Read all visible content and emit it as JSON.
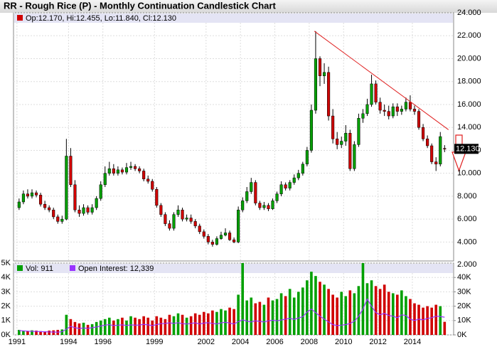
{
  "chart_data": {
    "type": "candlestick",
    "title": "RR - Rough Rice (P) - Monthly Continuation Candlestick Chart",
    "price_legend": "Op:12.170, Hi:12.455, Lo:11.840, Cl:12.130",
    "volume_legend": "Vol: 911",
    "oi_legend": "Open Interest: 12,339",
    "corner_label": "2.000",
    "up_color": "#00a000",
    "down_color": "#d00000",
    "oi_color": "#9933ff",
    "trend_color": "#e02020",
    "grid": true,
    "last_price": 12.13,
    "last_price_label": "12.130",
    "xlim": [
      1990.8,
      2016.4
    ],
    "xticks": [
      {
        "value": 1991,
        "label": "1991"
      },
      {
        "value": 1994,
        "label": "1994"
      },
      {
        "value": 1996,
        "label": "1996"
      },
      {
        "value": 1999,
        "label": "1999"
      },
      {
        "value": 2002,
        "label": "2002"
      },
      {
        "value": 2004,
        "label": "2004"
      },
      {
        "value": 2006,
        "label": "2006"
      },
      {
        "value": 2008,
        "label": "2008"
      },
      {
        "value": 2010,
        "label": "2010"
      },
      {
        "value": 2012,
        "label": "2012"
      },
      {
        "value": 2014,
        "label": "2014"
      }
    ],
    "ylim": [
      2.35,
      24
    ],
    "yticks": [
      {
        "value": 4,
        "label": "4.000"
      },
      {
        "value": 6,
        "label": "6.000"
      },
      {
        "value": 8,
        "label": "8.000"
      },
      {
        "value": 10,
        "label": "10.000"
      },
      {
        "value": 12,
        "label": "12.000"
      },
      {
        "value": 14,
        "label": "14.000"
      },
      {
        "value": 16,
        "label": "16.000"
      },
      {
        "value": 18,
        "label": "18.000"
      },
      {
        "value": 20,
        "label": "20.000"
      },
      {
        "value": 22,
        "label": "22.000"
      },
      {
        "value": 24,
        "label": "24.000"
      }
    ],
    "vol_lim": [
      0,
      5000
    ],
    "vol_ticks": [
      {
        "value": 0,
        "label": "0K"
      },
      {
        "value": 1000,
        "label": "1K"
      },
      {
        "value": 2000,
        "label": "2K"
      },
      {
        "value": 3000,
        "label": "3K"
      },
      {
        "value": 4000,
        "label": "4K"
      },
      {
        "value": 5000,
        "label": "5K"
      }
    ],
    "y2lim": [
      0,
      50000
    ],
    "y2ticks": [
      {
        "value": 0,
        "label": "0K"
      },
      {
        "value": 10000,
        "label": "10K"
      },
      {
        "value": 20000,
        "label": "20K"
      },
      {
        "value": 30000,
        "label": "30K"
      },
      {
        "value": 40000,
        "label": "40K"
      }
    ],
    "trendline": {
      "x": [
        2008.3,
        2016.1
      ],
      "y": [
        22.4,
        13.8
      ]
    },
    "open": [
      7.0,
      7.5,
      8.2,
      8.0,
      8.3,
      8.1,
      7.3,
      7.0,
      6.8,
      6.2,
      5.8,
      6.0,
      11.5,
      9.0,
      6.8,
      6.5,
      7.0,
      6.6,
      7.0,
      7.8,
      9.0,
      10.0,
      10.4,
      10.0,
      10.3,
      10.1,
      10.5,
      10.6,
      10.4,
      10.2,
      9.5,
      9.3,
      8.6,
      7.2,
      6.4,
      5.6,
      5.2,
      6.4,
      6.8,
      6.0,
      6.1,
      5.8,
      5.4,
      4.9,
      4.5,
      4.0,
      3.8,
      4.3,
      4.6,
      4.8,
      4.2,
      4.0,
      6.8,
      7.6,
      8.4,
      9.2,
      7.4,
      7.0,
      7.2,
      6.9,
      7.6,
      8.2,
      9.0,
      8.7,
      9.2,
      9.6,
      10.0,
      10.8,
      12.0,
      15.5,
      20.0,
      18.5,
      18.8,
      15.0,
      13.0,
      12.5,
      12.8,
      13.5,
      10.4,
      12.5,
      14.8,
      15.2,
      16.0,
      17.8,
      16.2,
      15.5,
      15.4,
      15.0,
      15.8,
      15.4,
      15.6,
      16.2,
      15.6,
      15.4,
      14.0,
      13.0,
      12.4,
      11.0,
      10.8,
      12.17
    ],
    "high": [
      7.8,
      8.5,
      8.6,
      8.6,
      8.5,
      8.3,
      7.6,
      7.2,
      7.0,
      6.4,
      6.3,
      13.0,
      12.2,
      9.4,
      7.2,
      7.3,
      7.2,
      7.3,
      8.0,
      9.3,
      10.6,
      11.0,
      10.8,
      10.6,
      10.5,
      10.9,
      11.0,
      10.8,
      10.6,
      10.4,
      9.8,
      9.5,
      8.8,
      7.4,
      6.6,
      5.9,
      6.6,
      7.2,
      7.0,
      6.4,
      6.4,
      6.0,
      5.6,
      5.1,
      4.7,
      4.2,
      4.5,
      4.9,
      5.2,
      5.0,
      4.4,
      7.1,
      7.9,
      8.8,
      9.6,
      9.4,
      7.6,
      7.5,
      7.4,
      7.8,
      8.4,
      9.3,
      9.2,
      9.4,
      9.9,
      10.3,
      11.0,
      12.3,
      16.0,
      22.4,
      20.2,
      19.6,
      19.3,
      15.6,
      13.6,
      13.2,
      14.2,
      13.8,
      12.8,
      15.2,
      15.6,
      16.5,
      18.6,
      18.1,
      16.6,
      16.0,
      15.9,
      16.1,
      16.1,
      15.9,
      16.6,
      16.8,
      15.9,
      15.6,
      14.3,
      13.3,
      12.6,
      11.4,
      13.6,
      12.455
    ],
    "low": [
      6.8,
      7.3,
      7.8,
      7.8,
      7.9,
      7.1,
      6.8,
      6.6,
      6.0,
      5.6,
      5.6,
      5.9,
      8.8,
      6.6,
      6.2,
      6.3,
      6.4,
      6.4,
      6.8,
      7.6,
      8.8,
      9.8,
      9.8,
      9.8,
      9.9,
      9.9,
      10.3,
      10.2,
      10.0,
      9.3,
      9.1,
      8.4,
      7.0,
      6.2,
      5.4,
      5.0,
      5.0,
      6.2,
      5.8,
      5.8,
      5.6,
      5.2,
      4.7,
      4.3,
      3.8,
      3.6,
      3.7,
      4.2,
      4.5,
      4.1,
      3.9,
      3.9,
      6.6,
      7.4,
      8.2,
      7.2,
      6.8,
      6.8,
      6.7,
      6.8,
      7.4,
      8.0,
      8.5,
      8.5,
      9.0,
      9.4,
      9.8,
      10.6,
      11.8,
      15.2,
      17.6,
      17.8,
      14.6,
      12.6,
      12.1,
      12.2,
      12.4,
      10.2,
      10.2,
      12.3,
      14.4,
      15.0,
      15.8,
      16.0,
      15.2,
      15.0,
      14.7,
      14.8,
      15.0,
      15.1,
      15.4,
      15.4,
      15.1,
      13.8,
      12.8,
      12.2,
      10.8,
      10.2,
      10.6,
      11.84
    ],
    "close": [
      7.5,
      8.2,
      8.0,
      8.3,
      8.1,
      7.3,
      7.0,
      6.8,
      6.2,
      5.8,
      6.0,
      11.5,
      9.0,
      6.8,
      6.5,
      7.0,
      6.6,
      7.0,
      7.8,
      9.0,
      10.0,
      10.4,
      10.0,
      10.3,
      10.1,
      10.5,
      10.6,
      10.4,
      10.2,
      9.5,
      9.3,
      8.6,
      7.2,
      6.4,
      5.6,
      5.2,
      6.4,
      6.8,
      6.0,
      6.1,
      5.8,
      5.4,
      4.9,
      4.5,
      4.0,
      3.8,
      4.3,
      4.6,
      4.8,
      4.2,
      4.0,
      6.8,
      7.6,
      8.4,
      9.2,
      7.4,
      7.0,
      7.2,
      6.9,
      7.6,
      8.2,
      9.0,
      8.7,
      9.2,
      9.6,
      10.0,
      10.8,
      12.0,
      15.5,
      20.0,
      18.5,
      18.8,
      15.0,
      13.0,
      12.5,
      12.8,
      13.5,
      10.4,
      12.5,
      14.8,
      15.2,
      16.0,
      17.8,
      16.2,
      15.5,
      15.4,
      15.0,
      15.8,
      15.4,
      15.6,
      16.2,
      15.6,
      15.4,
      14.0,
      13.0,
      12.4,
      11.0,
      10.8,
      13.2,
      12.13
    ],
    "volume": [
      350,
      300,
      280,
      320,
      300,
      260,
      250,
      300,
      320,
      350,
      380,
      1400,
      1100,
      900,
      800,
      850,
      700,
      750,
      900,
      1000,
      1100,
      1200,
      1000,
      1100,
      1200,
      1000,
      1300,
      1200,
      1100,
      1300,
      1200,
      1000,
      1300,
      1200,
      1100,
      1400,
      1300,
      1500,
      1400,
      1200,
      1300,
      1500,
      1400,
      1600,
      1500,
      1700,
      1600,
      1800,
      1700,
      1900,
      1800,
      2800,
      5000,
      2400,
      2600,
      2200,
      2300,
      2100,
      2600,
      2400,
      2500,
      2900,
      2700,
      3200,
      2600,
      3000,
      3300,
      3800,
      4400,
      4100,
      3700,
      3500,
      3200,
      2800,
      2600,
      3000,
      2700,
      3100,
      2900,
      3400,
      5000,
      3600,
      3800,
      3400,
      3200,
      3500,
      3000,
      2900,
      2800,
      3100,
      2700,
      2500,
      2200,
      2100,
      1900,
      2000,
      1900,
      2100,
      2000,
      911
    ],
    "open_interest": [
      3000,
      2800,
      2600,
      2500,
      2400,
      2300,
      2200,
      2100,
      2000,
      1900,
      2200,
      4000,
      6000,
      5000,
      4500,
      4800,
      4600,
      5000,
      5500,
      6200,
      6800,
      7200,
      6500,
      6800,
      7000,
      6600,
      7000,
      6800,
      6900,
      7400,
      7000,
      6500,
      7200,
      7800,
      8000,
      8400,
      8000,
      8500,
      7800,
      7600,
      8000,
      8400,
      7600,
      8200,
      8500,
      8000,
      7600,
      8400,
      8800,
      8200,
      7600,
      9200,
      10500,
      9600,
      9000,
      9800,
      9400,
      9000,
      9800,
      10200,
      9800,
      10400,
      11000,
      11600,
      10800,
      11800,
      12600,
      16000,
      18000,
      15500,
      13000,
      11000,
      9000,
      7200,
      6500,
      6800,
      7200,
      8000,
      9500,
      13000,
      18000,
      25000,
      20000,
      15500,
      14000,
      15000,
      13500,
      13000,
      12000,
      14000,
      13500,
      11000,
      10000,
      11000,
      10500,
      11500,
      12000,
      13000,
      12800,
      12339
    ]
  }
}
